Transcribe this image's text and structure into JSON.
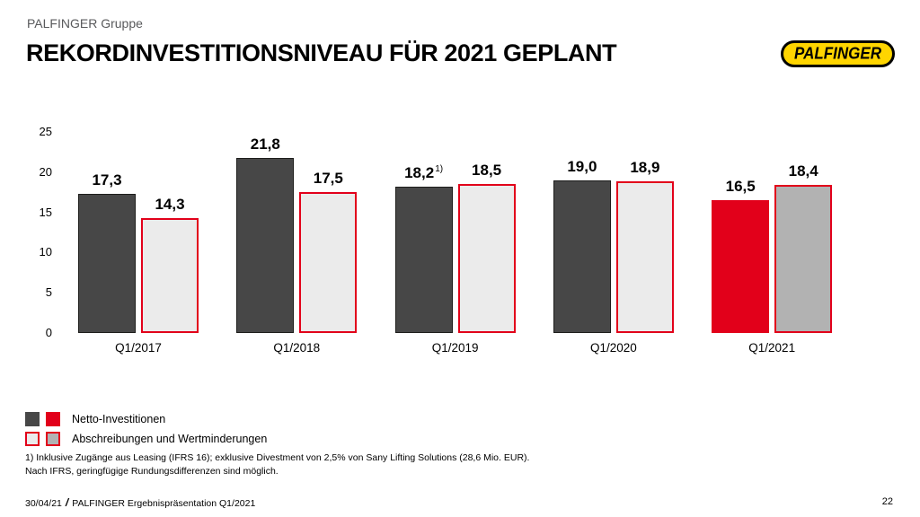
{
  "slide": {
    "eyebrow": "PALFINGER Gruppe",
    "title": "REKORDINVESTITIONSNIVEAU FÜR 2021 GEPLANT",
    "logo_text": "PALFINGER"
  },
  "chart_data": {
    "type": "bar",
    "categories": [
      "Q1/2017",
      "Q1/2018",
      "Q1/2019",
      "Q1/2020",
      "Q1/2021"
    ],
    "series": [
      {
        "name": "Netto-Investitionen",
        "values": [
          17.3,
          21.8,
          18.2,
          19.0,
          16.5
        ],
        "labels": [
          "17,3",
          "21,8",
          "18,2",
          "19,0",
          "16,5"
        ],
        "superscripts": [
          "",
          "",
          "1)",
          "",
          ""
        ],
        "styles": [
          "dark",
          "dark",
          "dark",
          "dark",
          "red"
        ]
      },
      {
        "name": "Abschreibungen und Wertminderungen",
        "values": [
          14.3,
          17.5,
          18.5,
          18.9,
          18.4
        ],
        "labels": [
          "14,3",
          "17,5",
          "18,5",
          "18,9",
          "18,4"
        ],
        "superscripts": [
          "",
          "",
          "",
          "",
          ""
        ],
        "styles": [
          "light",
          "light",
          "light",
          "light",
          "gray"
        ]
      }
    ],
    "title": "REKORDINVESTITIONSNIVEAU FÜR 2021 GEPLANT",
    "xlabel": "",
    "ylabel": "",
    "ylim": [
      0,
      25
    ],
    "yticks": [
      0,
      5,
      10,
      15,
      20,
      25
    ],
    "grid": false,
    "legend_position": "bottom-left"
  },
  "footnotes": [
    "1) Inklusive Zugänge aus Leasing (IFRS 16); exklusive Divestment von 2,5% von Sany Lifting Solutions (28,6 Mio. EUR).",
    "Nach IFRS, geringfügige Rundungsdifferenzen sind möglich."
  ],
  "footer": {
    "date": "30/04/21",
    "separator": "/",
    "label": "PALFINGER Ergebnispräsentation Q1/2021",
    "page": "22"
  },
  "colors": {
    "red": "#e2001a",
    "bar_dark": "#474747",
    "bar_dark_border": "#1d1d1b",
    "bar_light": "#ebebeb",
    "bar_gray": "#b2b2b2",
    "logo_yellow": "#ffd500",
    "eyebrow_gray": "#58595b"
  }
}
